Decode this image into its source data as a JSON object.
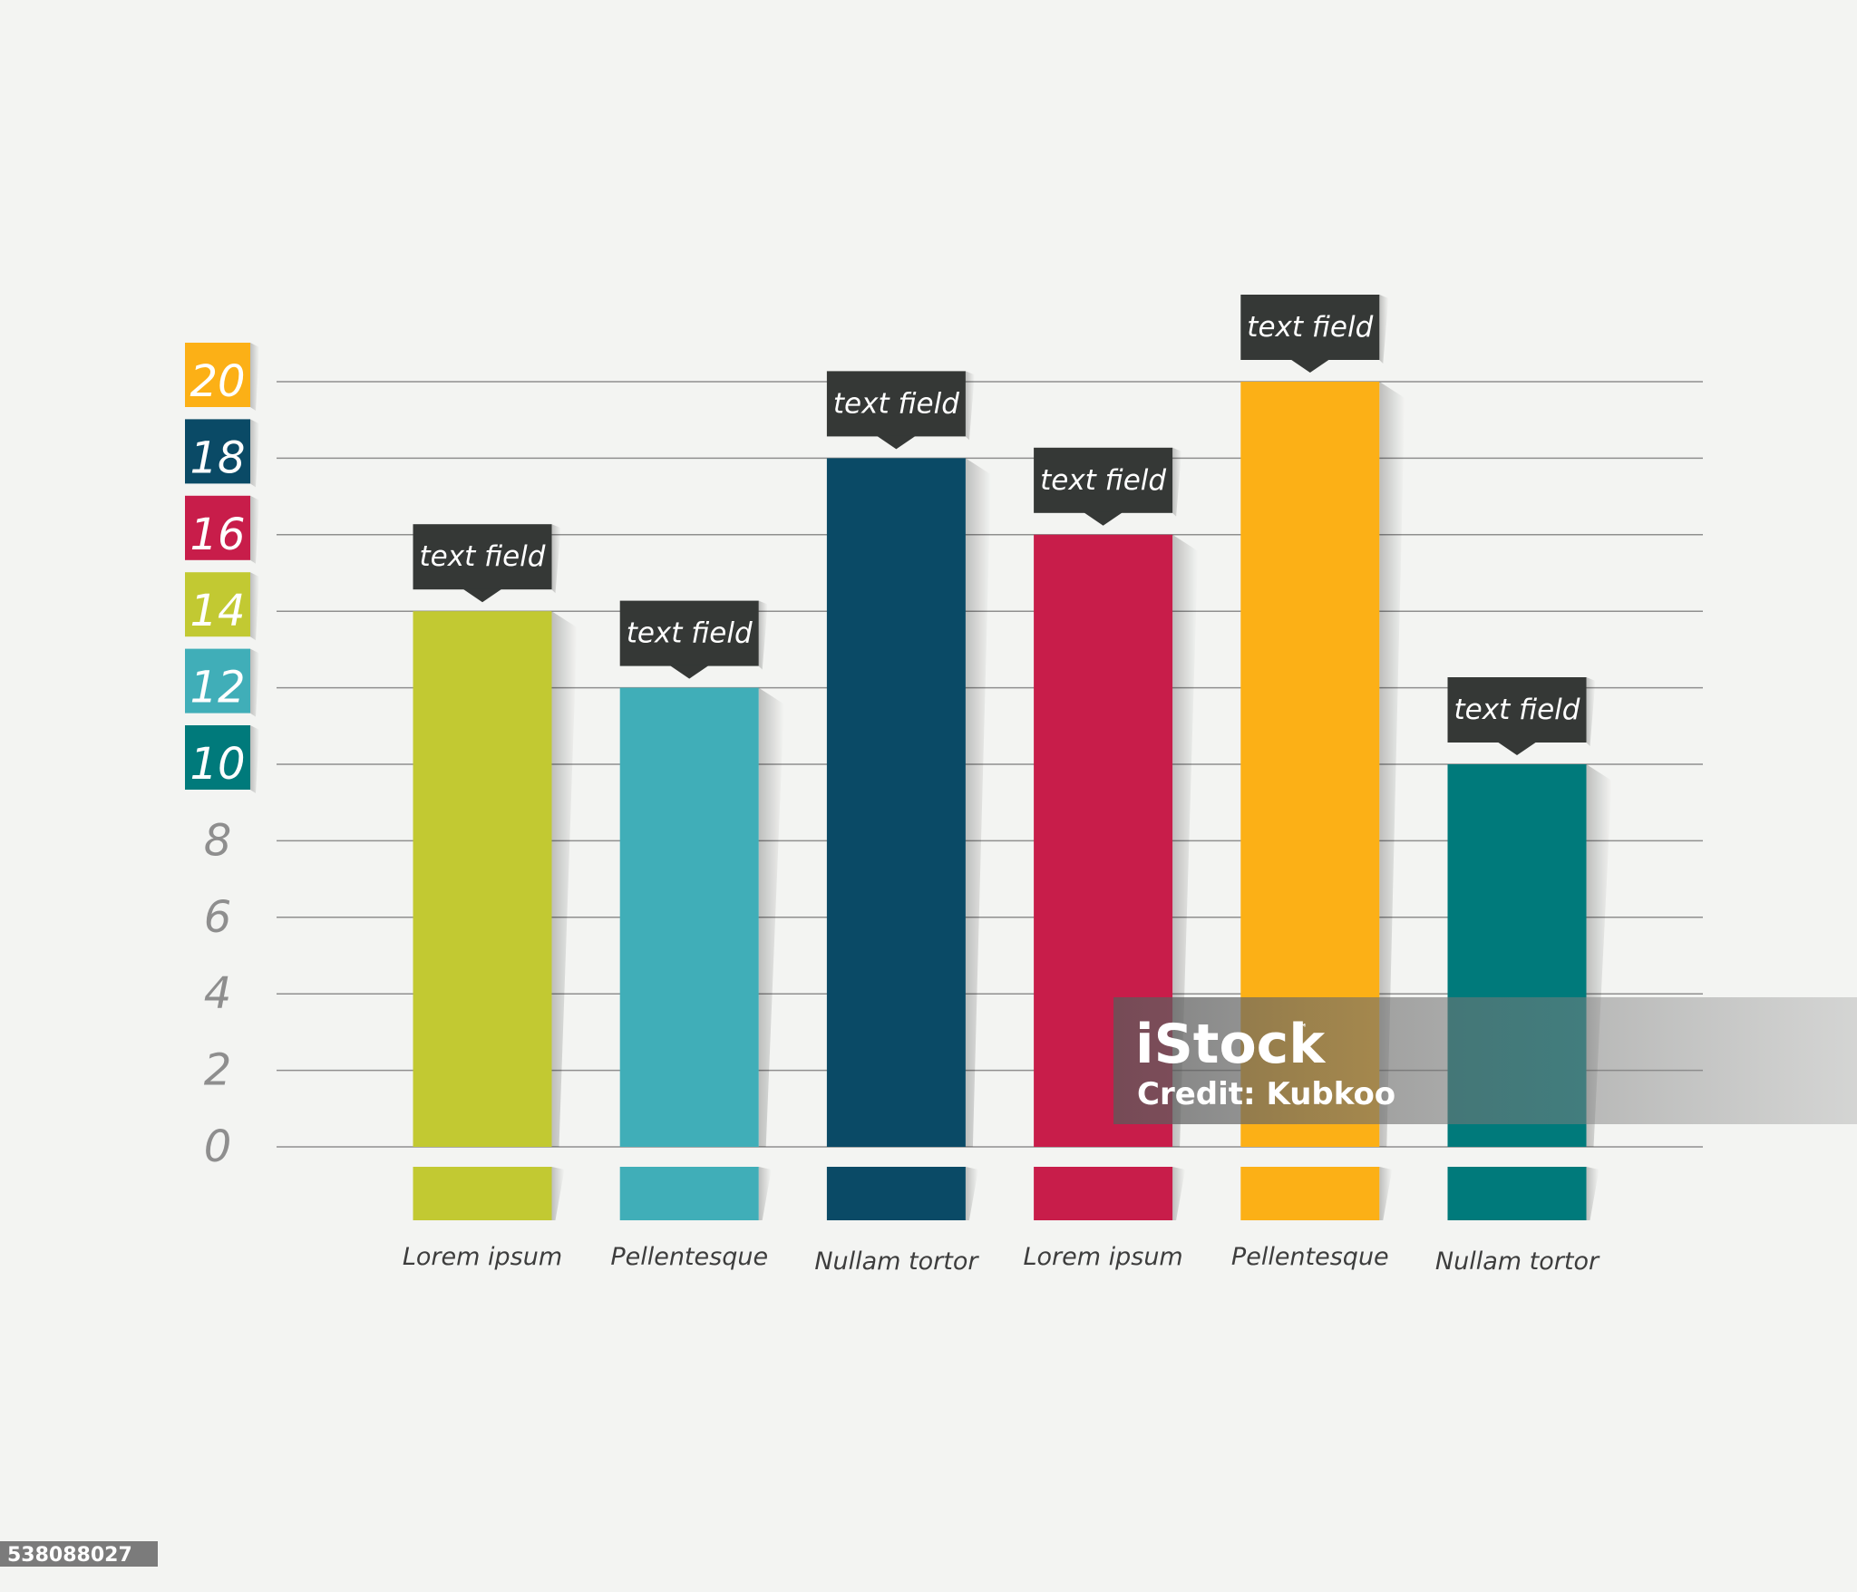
{
  "chart_data": {
    "type": "bar",
    "categories": [
      "Lorem ipsum",
      "Pellentesque",
      "Nullam tortor",
      "Lorem ipsum",
      "Pellentesque",
      "Nullam tortor"
    ],
    "values": [
      14,
      12,
      18,
      16,
      20,
      10
    ],
    "bar_colors": [
      "#c2c932",
      "#40aeb8",
      "#0a4a66",
      "#c81d4a",
      "#fcb016",
      "#007a7b"
    ],
    "callout_labels": [
      "text field",
      "text field",
      "text field",
      "text field",
      "text field",
      "text field"
    ],
    "y_ticks": [
      0,
      2,
      4,
      6,
      8,
      10,
      12,
      14,
      16,
      18,
      20
    ],
    "y_tick_colors": {
      "10": "#007a7b",
      "12": "#40aeb8",
      "14": "#c2c932",
      "16": "#c81d4a",
      "18": "#0a4a66",
      "20": "#fcb016"
    },
    "ylim": [
      0,
      20
    ],
    "grid": true,
    "title": "",
    "xlabel": "",
    "ylabel": ""
  },
  "watermark": {
    "logo": "iStock",
    "trademark": "™",
    "credit": "Credit: Kubkoo"
  },
  "image_id": "538088027"
}
